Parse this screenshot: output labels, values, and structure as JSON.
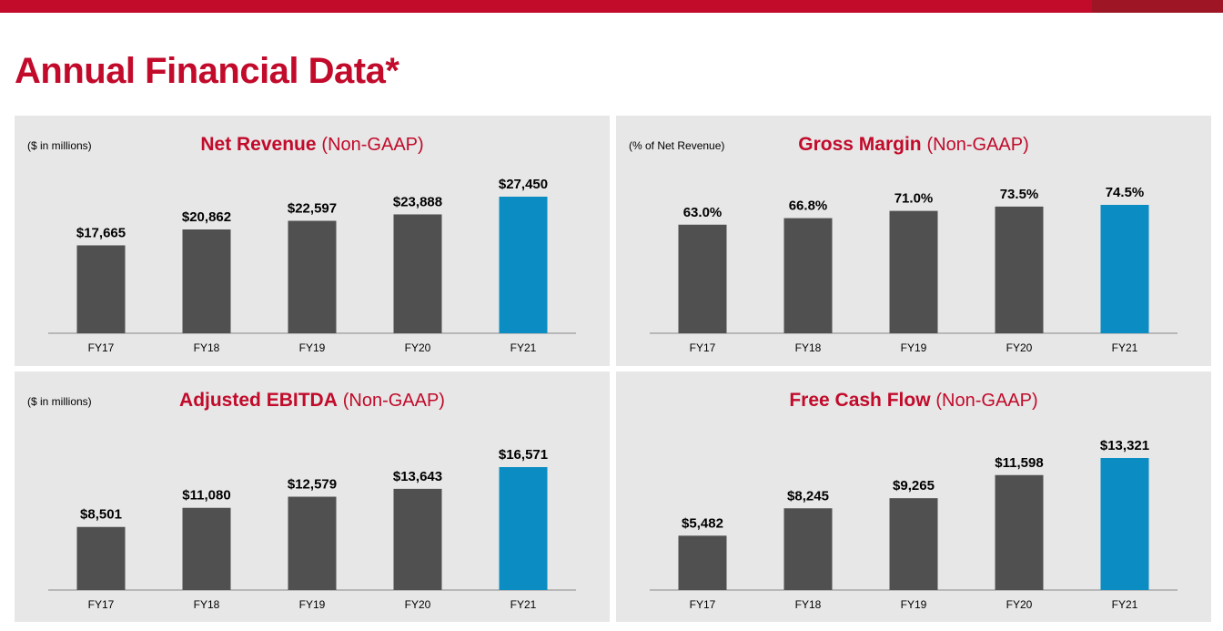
{
  "header": {
    "title": "Annual Financial Data*"
  },
  "colors": {
    "brand_red": "#c20a2b",
    "bar_dark": "#505050",
    "bar_highlight": "#0b8dc3",
    "panel_bg": "#e6e7e6"
  },
  "chart_data": [
    {
      "type": "bar",
      "title": "Net Revenue",
      "title_suffix": "(Non-GAAP)",
      "unit_note": "($ in millions)",
      "categories": [
        "FY17",
        "FY18",
        "FY19",
        "FY20",
        "FY21"
      ],
      "values": [
        17665,
        20862,
        22597,
        23888,
        27450
      ],
      "labels": [
        "$17,665",
        "$20,862",
        "$22,597",
        "$23,888",
        "$27,450"
      ],
      "highlight_index": 4,
      "ylim": [
        0,
        27450
      ],
      "xlabel": "",
      "ylabel": ""
    },
    {
      "type": "bar",
      "title": "Gross Margin",
      "title_suffix": "(Non-GAAP)",
      "unit_note": "(% of Net Revenue)",
      "categories": [
        "FY17",
        "FY18",
        "FY19",
        "FY20",
        "FY21"
      ],
      "values": [
        63.0,
        66.8,
        71.0,
        73.5,
        74.5
      ],
      "labels": [
        "63.0%",
        "66.8%",
        "71.0%",
        "73.5%",
        "74.5%"
      ],
      "highlight_index": 4,
      "ylim": [
        0,
        74.5
      ],
      "xlabel": "",
      "ylabel": ""
    },
    {
      "type": "bar",
      "title": "Adjusted EBITDA",
      "title_suffix": "(Non-GAAP)",
      "unit_note": "($ in millions)",
      "categories": [
        "FY17",
        "FY18",
        "FY19",
        "FY20",
        "FY21"
      ],
      "values": [
        8501,
        11080,
        12579,
        13643,
        16571
      ],
      "labels": [
        "$8,501",
        "$11,080",
        "$12,579",
        "$13,643",
        "$16,571"
      ],
      "highlight_index": 4,
      "ylim": [
        0,
        16571
      ],
      "xlabel": "",
      "ylabel": ""
    },
    {
      "type": "bar",
      "title": "Free Cash Flow",
      "title_suffix": "(Non-GAAP)",
      "unit_note": "",
      "categories": [
        "FY17",
        "FY18",
        "FY19",
        "FY20",
        "FY21"
      ],
      "values": [
        5482,
        8245,
        9265,
        11598,
        13321
      ],
      "labels": [
        "$5,482",
        "$8,245",
        "$9,265",
        "$11,598",
        "$13,321"
      ],
      "highlight_index": 4,
      "ylim": [
        0,
        13321
      ],
      "xlabel": "",
      "ylabel": ""
    }
  ]
}
